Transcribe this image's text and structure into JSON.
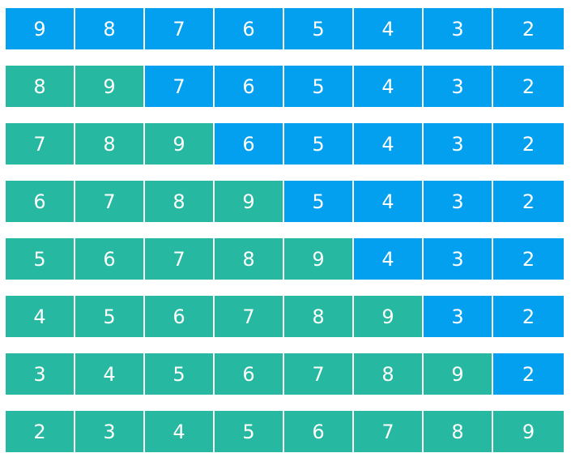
{
  "colors": {
    "sorted": "#26b8a0",
    "unsorted": "#04a0f0",
    "text": "#ffffff"
  },
  "rows": [
    {
      "sorted_count": 0,
      "values": [
        "9",
        "8",
        "7",
        "6",
        "5",
        "4",
        "3",
        "2"
      ]
    },
    {
      "sorted_count": 2,
      "values": [
        "8",
        "9",
        "7",
        "6",
        "5",
        "4",
        "3",
        "2"
      ]
    },
    {
      "sorted_count": 3,
      "values": [
        "7",
        "8",
        "9",
        "6",
        "5",
        "4",
        "3",
        "2"
      ]
    },
    {
      "sorted_count": 4,
      "values": [
        "6",
        "7",
        "8",
        "9",
        "5",
        "4",
        "3",
        "2"
      ]
    },
    {
      "sorted_count": 5,
      "values": [
        "5",
        "6",
        "7",
        "8",
        "9",
        "4",
        "3",
        "2"
      ]
    },
    {
      "sorted_count": 6,
      "values": [
        "4",
        "5",
        "6",
        "7",
        "8",
        "9",
        "3",
        "2"
      ]
    },
    {
      "sorted_count": 7,
      "values": [
        "3",
        "4",
        "5",
        "6",
        "7",
        "8",
        "9",
        "2"
      ]
    },
    {
      "sorted_count": 8,
      "values": [
        "2",
        "3",
        "4",
        "5",
        "6",
        "7",
        "8",
        "9"
      ]
    }
  ]
}
